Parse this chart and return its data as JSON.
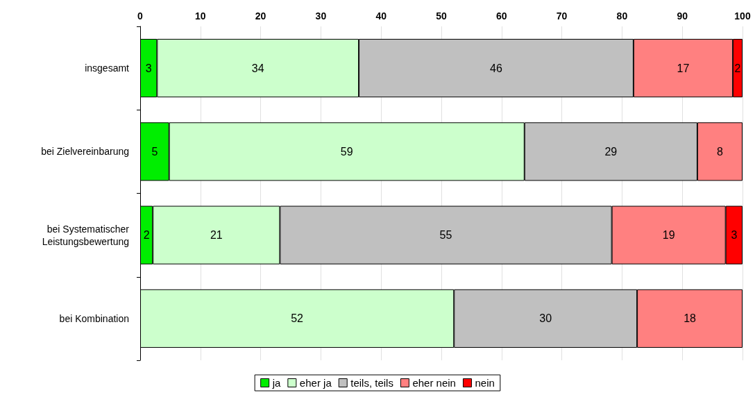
{
  "chart_data": {
    "type": "bar",
    "orientation": "horizontal",
    "stacked": true,
    "categories": [
      "insgesamt",
      "bei Zielvereinbarung",
      "bei Systematischer\nLeistungsbewertung",
      "bei Kombination"
    ],
    "series": [
      {
        "name": "ja",
        "color": "#00ee00",
        "values": [
          2.8,
          4.8,
          2.1,
          null
        ],
        "value_labels": [
          "3",
          "5",
          "2",
          null
        ]
      },
      {
        "name": "eher ja",
        "color": "#ccffcc",
        "values": [
          33.5,
          59.0,
          21.1,
          52.1
        ],
        "value_labels": [
          "34",
          "59",
          "21",
          "52"
        ]
      },
      {
        "name": "teils, teils",
        "color": "#c0c0c0",
        "values": [
          45.6,
          28.7,
          55.1,
          30.4
        ],
        "value_labels": [
          "46",
          "29",
          "55",
          "30"
        ]
      },
      {
        "name": "eher nein",
        "color": "#ff8080",
        "values": [
          16.5,
          7.5,
          18.9,
          17.5
        ],
        "value_labels": [
          "17",
          "8",
          "19",
          "18"
        ]
      },
      {
        "name": "nein",
        "color": "#ff0000",
        "values": [
          1.6,
          null,
          2.8,
          null
        ],
        "value_labels": [
          "2",
          null,
          "3",
          null
        ]
      }
    ],
    "xlim": [
      0,
      100
    ],
    "xticks": [
      0,
      10,
      20,
      30,
      40,
      50,
      60,
      70,
      80,
      90,
      100
    ],
    "grid": "x",
    "legend": "bottom"
  }
}
